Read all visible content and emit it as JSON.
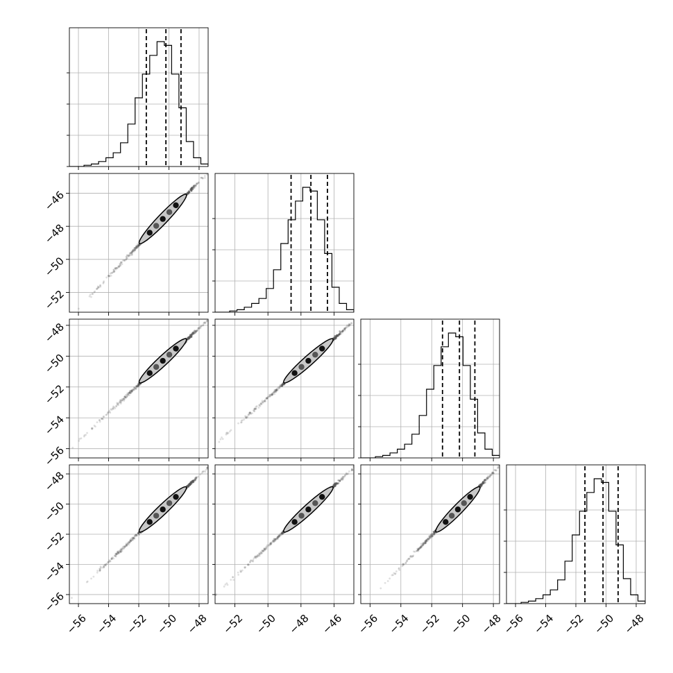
{
  "chart_data": {
    "type": "corner",
    "n_params": 4,
    "grid": true,
    "quantiles": [
      0.16,
      0.5,
      0.84
    ],
    "colors": {
      "line": "#000000",
      "grid": "#b0b0b0",
      "points": "#555555",
      "fill": "#c8c8c8"
    },
    "params": [
      {
        "index": 0,
        "range": [
          -56.6,
          -47.4
        ],
        "ticks": [
          -56,
          -54,
          -52,
          -50,
          -48
        ],
        "tick_labels": [
          "−56",
          "−54",
          "−52",
          "−50",
          "−48"
        ],
        "quantile_values": [
          -51.5,
          -50.2,
          -49.2
        ],
        "hist": [
          0,
          0,
          0.01,
          0.02,
          0.04,
          0.07,
          0.11,
          0.19,
          0.34,
          0.55,
          0.74,
          0.89,
          1.0,
          0.97,
          0.74,
          0.47,
          0.2,
          0.07,
          0.02
        ]
      },
      {
        "index": 1,
        "range": [
          -53.2,
          -44.8
        ],
        "ticks": [
          -52,
          -50,
          -48,
          -46
        ],
        "tick_labels": [
          "−52",
          "−50",
          "−48",
          "−46"
        ],
        "quantile_values": [
          -48.6,
          -47.4,
          -46.4
        ],
        "hist": [
          0,
          0,
          0.01,
          0.02,
          0.04,
          0.07,
          0.11,
          0.19,
          0.34,
          0.55,
          0.74,
          0.89,
          1.0,
          0.97,
          0.74,
          0.47,
          0.2,
          0.07,
          0.02
        ]
      },
      {
        "index": 2,
        "range": [
          -56.6,
          -47.6
        ],
        "ticks": [
          -56,
          -54,
          -52,
          -50,
          -48
        ],
        "tick_labels": [
          "−56",
          "−54",
          "−52",
          "−50",
          "−48"
        ],
        "quantile_values": [
          -51.3,
          -50.2,
          -49.2
        ],
        "hist": [
          0,
          0,
          0.01,
          0.02,
          0.04,
          0.07,
          0.11,
          0.19,
          0.34,
          0.55,
          0.74,
          0.89,
          1.0,
          0.97,
          0.74,
          0.47,
          0.2,
          0.07,
          0.02
        ]
      },
      {
        "index": 3,
        "range": [
          -56.6,
          -47.4
        ],
        "ticks": [
          -56,
          -54,
          -52,
          -50,
          -48
        ],
        "tick_labels": [
          "−56",
          "−54",
          "−52",
          "−50",
          "−48"
        ],
        "quantile_values": [
          -51.4,
          -50.2,
          -49.2
        ],
        "hist": [
          0,
          0,
          0.01,
          0.02,
          0.04,
          0.07,
          0.11,
          0.19,
          0.34,
          0.55,
          0.74,
          0.89,
          1.0,
          0.97,
          0.74,
          0.47,
          0.2,
          0.07,
          0.02
        ]
      }
    ]
  }
}
